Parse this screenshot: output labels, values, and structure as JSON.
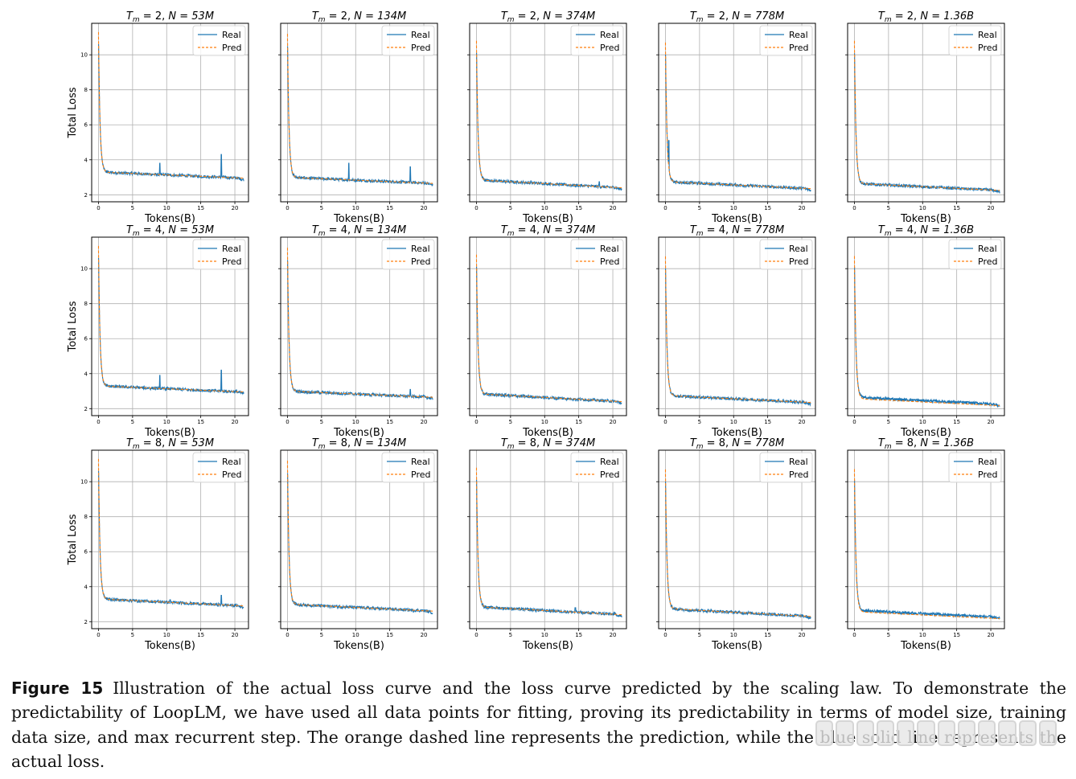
{
  "chart_data": {
    "type": "line",
    "layout": "3x5 grid",
    "legend_location": "top-right",
    "grid": true,
    "xlabel": "Tokens(B)",
    "ylabel": "Total Loss",
    "xlim": [
      -1,
      22
    ],
    "ylim": [
      1.6,
      11.8
    ],
    "xticks": [
      0,
      5,
      10,
      15,
      20
    ],
    "yticks": [
      2,
      4,
      6,
      8,
      10
    ],
    "legend": [
      "Real",
      "Pred"
    ],
    "series_colors": {
      "Real": "#1f77b4",
      "Pred": "#ff7f0e"
    },
    "series_styles": {
      "Real": "solid",
      "Pred": "dashed"
    },
    "rows": [
      {
        "Tm_label": "2",
        "panels": [
          {
            "N_label": "53M",
            "start": 11.3,
            "knee": 3.3,
            "final": 2.95,
            "spikes": [
              [
                9.0,
                3.8
              ],
              [
                18.0,
                4.3
              ]
            ]
          },
          {
            "N_label": "134M",
            "start": 11.2,
            "knee": 3.0,
            "final": 2.65,
            "spikes": [
              [
                9.0,
                3.8
              ],
              [
                18.0,
                3.6
              ]
            ]
          },
          {
            "N_label": "374M",
            "start": 10.8,
            "knee": 2.85,
            "final": 2.4,
            "spikes": [
              [
                8.0,
                2.8
              ],
              [
                18.0,
                2.75
              ]
            ]
          },
          {
            "N_label": "778M",
            "start": 10.7,
            "knee": 2.75,
            "final": 2.35,
            "spikes": [
              [
                0.5,
                5.1
              ]
            ]
          },
          {
            "N_label": "1.36B",
            "start": 10.8,
            "knee": 2.65,
            "final": 2.25,
            "spikes": []
          }
        ]
      },
      {
        "Tm_label": "4",
        "panels": [
          {
            "N_label": "53M",
            "start": 11.3,
            "knee": 3.3,
            "final": 2.95,
            "spikes": [
              [
                9.0,
                3.9
              ],
              [
                18.0,
                4.2
              ]
            ]
          },
          {
            "N_label": "134M",
            "start": 11.2,
            "knee": 3.0,
            "final": 2.65,
            "spikes": [
              [
                18.0,
                3.1
              ]
            ]
          },
          {
            "N_label": "374M",
            "start": 10.8,
            "knee": 2.85,
            "final": 2.4,
            "spikes": []
          },
          {
            "N_label": "778M",
            "start": 10.7,
            "knee": 2.75,
            "final": 2.35,
            "spikes": []
          },
          {
            "N_label": "1.36B",
            "start": 10.8,
            "knee": 2.65,
            "final": 2.25,
            "spikes": []
          }
        ]
      },
      {
        "Tm_label": "8",
        "panels": [
          {
            "N_label": "53M",
            "start": 11.3,
            "knee": 3.3,
            "final": 2.9,
            "spikes": [
              [
                10.5,
                3.25
              ],
              [
                18.0,
                3.5
              ]
            ]
          },
          {
            "N_label": "134M",
            "start": 11.2,
            "knee": 3.0,
            "final": 2.6,
            "spikes": []
          },
          {
            "N_label": "374M",
            "start": 10.8,
            "knee": 2.85,
            "final": 2.4,
            "spikes": [
              [
                14.5,
                2.8
              ]
            ]
          },
          {
            "N_label": "778M",
            "start": 10.7,
            "knee": 2.75,
            "final": 2.3,
            "spikes": []
          },
          {
            "N_label": "1.36B",
            "start": 10.8,
            "knee": 2.65,
            "final": 2.25,
            "spikes": []
          }
        ]
      }
    ]
  },
  "caption": {
    "label": "Figure 15",
    "text": "Illustration of the actual loss curve and the loss curve predicted by the scaling law. To demonstrate the predictability of LoopLM, we have used all data points for fitting, proving its predictability in terms of model size, training data size, and max recurrent step. The orange dashed line represents the prediction, while the blue solid line represents the actual loss."
  }
}
